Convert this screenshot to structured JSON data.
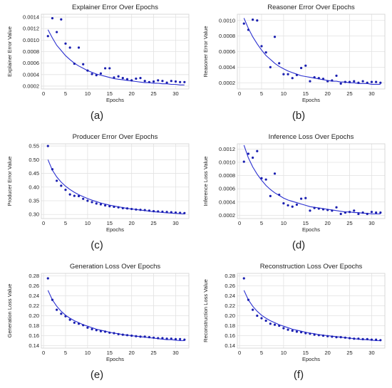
{
  "colors": {
    "fit": "#2a2fd0",
    "points": "#1a1fb0",
    "grid": "#e2e2e2",
    "text": "#222222"
  },
  "chart_data": [
    {
      "type": "scatter",
      "title": "Explainer Error Over Epochs",
      "xlabel": "Epochs",
      "ylabel": "Explainer Error Value",
      "caption": "(a)",
      "xlim": [
        -0.5,
        33
      ],
      "ylim": [
        0.00015,
        0.00145
      ],
      "xticks": [
        0,
        5,
        10,
        15,
        20,
        25,
        30
      ],
      "yticks": [
        0.0002,
        0.0004,
        0.0006,
        0.0008,
        0.001,
        0.0012,
        0.0014
      ],
      "ytick_labels": [
        "0.0002",
        "0.0004",
        "0.0006",
        "0.0008",
        "0.0010",
        "0.0012",
        "0.0014"
      ],
      "grid": true,
      "series": [
        {
          "type": "scatter",
          "x": [
            1,
            2,
            3,
            4,
            5,
            6,
            7,
            8,
            9,
            10,
            11,
            12,
            13,
            14,
            15,
            16,
            17,
            18,
            19,
            20,
            21,
            22,
            23,
            24,
            25,
            26,
            27,
            28,
            29,
            30,
            31,
            32
          ],
          "y": [
            0.00107,
            0.00138,
            0.00114,
            0.00136,
            0.00094,
            0.00087,
            0.00059,
            0.00087,
            0.00058,
            0.00047,
            0.00041,
            0.00039,
            0.00042,
            0.00051,
            0.00051,
            0.00035,
            0.00037,
            0.00034,
            0.00032,
            0.0003,
            0.00033,
            0.00034,
            0.00029,
            0.00027,
            0.00028,
            0.0003,
            0.00029,
            0.00026,
            0.00029,
            0.00028,
            0.00027,
            0.00027
          ]
        },
        {
          "type": "line",
          "x": [
            1,
            2,
            3,
            4,
            5,
            6,
            7,
            8,
            9,
            10,
            11,
            12,
            13,
            14,
            15,
            16,
            17,
            18,
            19,
            20,
            21,
            22,
            23,
            24,
            25,
            26,
            27,
            28,
            29,
            30,
            31,
            32
          ],
          "y": [
            0.00118,
            0.00104,
            0.00091,
            0.00082,
            0.00073,
            0.00066,
            0.0006,
            0.00055,
            0.00051,
            0.00047,
            0.00044,
            0.00041,
            0.00039,
            0.00037,
            0.00035,
            0.00033,
            0.00032,
            0.00031,
            0.0003,
            0.00029,
            0.00028,
            0.00027,
            0.00026,
            0.00026,
            0.00025,
            0.00025,
            0.00024,
            0.00024,
            0.00023,
            0.00023,
            0.00022,
            0.00022
          ]
        }
      ]
    },
    {
      "type": "scatter",
      "title": "Reasoner Error Over Epochs",
      "xlabel": "Epochs",
      "ylabel": "Reasoner Error Value",
      "caption": "(b)",
      "xlim": [
        -0.5,
        33
      ],
      "ylim": [
        0.00012,
        0.00108
      ],
      "xticks": [
        0,
        5,
        10,
        15,
        20,
        25,
        30
      ],
      "yticks": [
        0.0002,
        0.0004,
        0.0006,
        0.0008,
        0.001
      ],
      "ytick_labels": [
        "0.0002",
        "0.0004",
        "0.0006",
        "0.0008",
        "0.0010"
      ],
      "grid": true,
      "series": [
        {
          "type": "scatter",
          "x": [
            1,
            2,
            3,
            4,
            5,
            6,
            7,
            8,
            9,
            10,
            11,
            12,
            13,
            14,
            15,
            16,
            17,
            18,
            19,
            20,
            21,
            22,
            23,
            24,
            25,
            26,
            27,
            28,
            29,
            30,
            31,
            32
          ],
          "y": [
            0.00096,
            0.00088,
            0.00101,
            0.001,
            0.00067,
            0.00059,
            0.0004,
            0.00079,
            0.00045,
            0.00031,
            0.00031,
            0.00026,
            0.0003,
            0.00039,
            0.00042,
            0.00022,
            0.00027,
            0.00026,
            0.00025,
            0.00022,
            0.00023,
            0.00029,
            0.00019,
            0.00021,
            0.00021,
            0.00022,
            0.0002,
            0.00022,
            0.0002,
            0.00021,
            0.00021,
            0.0002
          ]
        },
        {
          "type": "line",
          "x": [
            1,
            2,
            3,
            4,
            5,
            6,
            7,
            8,
            9,
            10,
            11,
            12,
            13,
            14,
            15,
            16,
            17,
            18,
            19,
            20,
            21,
            22,
            23,
            24,
            25,
            26,
            27,
            28,
            29,
            30,
            31,
            32
          ],
          "y": [
            0.00103,
            0.0009,
            0.00079,
            0.0007,
            0.00062,
            0.00055,
            0.0005,
            0.00045,
            0.00041,
            0.00038,
            0.00035,
            0.00033,
            0.00031,
            0.00029,
            0.00028,
            0.00027,
            0.00026,
            0.00025,
            0.00024,
            0.00023,
            0.00022,
            0.00022,
            0.00021,
            0.00021,
            0.0002,
            0.0002,
            0.00019,
            0.00019,
            0.00019,
            0.00018,
            0.00018,
            0.00018
          ]
        }
      ]
    },
    {
      "type": "scatter",
      "title": "Producer Error Over Epochs",
      "xlabel": "Epochs",
      "ylabel": "Producer Error Value",
      "caption": "(c)",
      "xlim": [
        -0.5,
        33
      ],
      "ylim": [
        0.285,
        0.558
      ],
      "xticks": [
        0,
        5,
        10,
        15,
        20,
        25,
        30
      ],
      "yticks": [
        0.3,
        0.35,
        0.4,
        0.45,
        0.5,
        0.55
      ],
      "ytick_labels": [
        "0.30",
        "0.35",
        "0.40",
        "0.45",
        "0.50",
        "0.55"
      ],
      "grid": true,
      "series": [
        {
          "type": "scatter",
          "x": [
            1,
            2,
            3,
            4,
            5,
            6,
            7,
            8,
            9,
            10,
            11,
            12,
            13,
            14,
            15,
            16,
            17,
            18,
            19,
            20,
            21,
            22,
            23,
            24,
            25,
            26,
            27,
            28,
            29,
            30,
            31,
            32
          ],
          "y": [
            0.55,
            0.465,
            0.423,
            0.405,
            0.39,
            0.373,
            0.368,
            0.367,
            0.357,
            0.35,
            0.345,
            0.34,
            0.337,
            0.333,
            0.33,
            0.328,
            0.326,
            0.323,
            0.322,
            0.32,
            0.318,
            0.317,
            0.316,
            0.314,
            0.312,
            0.311,
            0.31,
            0.309,
            0.308,
            0.307,
            0.306,
            0.305
          ]
        },
        {
          "type": "line",
          "x": [
            1,
            2,
            3,
            4,
            5,
            6,
            7,
            8,
            9,
            10,
            11,
            12,
            13,
            14,
            15,
            16,
            17,
            18,
            19,
            20,
            21,
            22,
            23,
            24,
            25,
            26,
            27,
            28,
            29,
            30,
            31,
            32
          ],
          "y": [
            0.5,
            0.462,
            0.437,
            0.418,
            0.403,
            0.391,
            0.381,
            0.372,
            0.365,
            0.358,
            0.352,
            0.347,
            0.342,
            0.338,
            0.334,
            0.331,
            0.328,
            0.325,
            0.322,
            0.32,
            0.318,
            0.316,
            0.314,
            0.312,
            0.31,
            0.309,
            0.307,
            0.306,
            0.305,
            0.304,
            0.303,
            0.302
          ]
        }
      ]
    },
    {
      "type": "scatter",
      "title": "Inference Loss Over Epochs",
      "xlabel": "Epochs",
      "ylabel": "Inference Loss Value",
      "caption": "(d)",
      "xlim": [
        -0.5,
        33
      ],
      "ylim": [
        0.00015,
        0.00128
      ],
      "xticks": [
        0,
        5,
        10,
        15,
        20,
        25,
        30
      ],
      "yticks": [
        0.0002,
        0.0004,
        0.0006,
        0.0008,
        0.001,
        0.0012
      ],
      "ytick_labels": [
        "0.0002",
        "0.0004",
        "0.0006",
        "0.0008",
        "0.0010",
        "0.0012"
      ],
      "grid": true,
      "series": [
        {
          "type": "scatter",
          "x": [
            1,
            2,
            3,
            4,
            5,
            6,
            7,
            8,
            9,
            10,
            11,
            12,
            13,
            14,
            15,
            16,
            17,
            18,
            19,
            20,
            21,
            22,
            23,
            24,
            25,
            26,
            27,
            28,
            29,
            30,
            31,
            32
          ],
          "y": [
            0.00101,
            0.00113,
            0.00107,
            0.00117,
            0.00076,
            0.00074,
            0.00049,
            0.00083,
            0.00051,
            0.00038,
            0.00035,
            0.00033,
            0.00036,
            0.00045,
            0.00046,
            0.00027,
            0.00031,
            0.0003,
            0.00029,
            0.00028,
            0.00027,
            0.00032,
            0.00022,
            0.00024,
            0.00025,
            0.00027,
            0.00022,
            0.00024,
            0.00022,
            0.00025,
            0.00024,
            0.00024
          ]
        },
        {
          "type": "line",
          "x": [
            1,
            2,
            3,
            4,
            5,
            6,
            7,
            8,
            9,
            10,
            11,
            12,
            13,
            14,
            15,
            16,
            17,
            18,
            19,
            20,
            21,
            22,
            23,
            24,
            25,
            26,
            27,
            28,
            29,
            30,
            31,
            32
          ],
          "y": [
            0.00126,
            0.00107,
            0.00093,
            0.00082,
            0.00073,
            0.00065,
            0.00059,
            0.00054,
            0.0005,
            0.00046,
            0.00043,
            0.00041,
            0.00039,
            0.00037,
            0.00035,
            0.00033,
            0.00032,
            0.00031,
            0.0003,
            0.00029,
            0.00028,
            0.00027,
            0.00026,
            0.00025,
            0.00025,
            0.00024,
            0.00024,
            0.00023,
            0.00023,
            0.00022,
            0.00022,
            0.00022
          ]
        }
      ]
    },
    {
      "type": "scatter",
      "title": "Generation Loss Over Epochs",
      "xlabel": "Epochs",
      "ylabel": "Generation Loss Value",
      "caption": "(e)",
      "xlim": [
        -0.5,
        33
      ],
      "ylim": [
        0.135,
        0.285
      ],
      "xticks": [
        0,
        5,
        10,
        15,
        20,
        25,
        30
      ],
      "yticks": [
        0.14,
        0.16,
        0.18,
        0.2,
        0.22,
        0.24,
        0.26,
        0.28
      ],
      "ytick_labels": [
        "0.14",
        "0.16",
        "0.18",
        "0.20",
        "0.22",
        "0.24",
        "0.26",
        "0.28"
      ],
      "grid": true,
      "series": [
        {
          "type": "scatter",
          "x": [
            1,
            2,
            3,
            4,
            5,
            6,
            7,
            8,
            9,
            10,
            11,
            12,
            13,
            14,
            15,
            16,
            17,
            18,
            19,
            20,
            21,
            22,
            23,
            24,
            25,
            26,
            27,
            28,
            29,
            30,
            31,
            32
          ],
          "y": [
            0.275,
            0.232,
            0.212,
            0.204,
            0.199,
            0.192,
            0.186,
            0.184,
            0.181,
            0.176,
            0.173,
            0.171,
            0.169,
            0.168,
            0.166,
            0.165,
            0.163,
            0.162,
            0.161,
            0.16,
            0.159,
            0.158,
            0.158,
            0.157,
            0.156,
            0.155,
            0.155,
            0.154,
            0.154,
            0.153,
            0.153,
            0.152
          ]
        },
        {
          "type": "line",
          "x": [
            1,
            2,
            3,
            4,
            5,
            6,
            7,
            8,
            9,
            10,
            11,
            12,
            13,
            14,
            15,
            16,
            17,
            18,
            19,
            20,
            21,
            22,
            23,
            24,
            25,
            26,
            27,
            28,
            29,
            30,
            31,
            32
          ],
          "y": [
            0.251,
            0.232,
            0.219,
            0.209,
            0.201,
            0.195,
            0.19,
            0.186,
            0.182,
            0.179,
            0.176,
            0.173,
            0.171,
            0.169,
            0.167,
            0.165,
            0.164,
            0.162,
            0.161,
            0.16,
            0.159,
            0.158,
            0.157,
            0.156,
            0.155,
            0.154,
            0.153,
            0.152,
            0.152,
            0.151,
            0.15,
            0.15
          ]
        }
      ]
    },
    {
      "type": "scatter",
      "title": "Reconstruction Loss Over Epochs",
      "xlabel": "Epochs",
      "ylabel": "Reconstruction Loss Value",
      "caption": "(f)",
      "xlim": [
        -0.5,
        33
      ],
      "ylim": [
        0.135,
        0.285
      ],
      "xticks": [
        0,
        5,
        10,
        15,
        20,
        25,
        30
      ],
      "yticks": [
        0.14,
        0.16,
        0.18,
        0.2,
        0.22,
        0.24,
        0.26,
        0.28
      ],
      "ytick_labels": [
        "0.14",
        "0.16",
        "0.18",
        "0.20",
        "0.22",
        "0.24",
        "0.26",
        "0.28"
      ],
      "grid": true,
      "series": [
        {
          "type": "scatter",
          "x": [
            1,
            2,
            3,
            4,
            5,
            6,
            7,
            8,
            9,
            10,
            11,
            12,
            13,
            14,
            15,
            16,
            17,
            18,
            19,
            20,
            21,
            22,
            23,
            24,
            25,
            26,
            27,
            28,
            29,
            30,
            31,
            32
          ],
          "y": [
            0.275,
            0.232,
            0.212,
            0.2,
            0.195,
            0.19,
            0.184,
            0.182,
            0.18,
            0.175,
            0.172,
            0.17,
            0.168,
            0.167,
            0.165,
            0.164,
            0.162,
            0.161,
            0.16,
            0.159,
            0.158,
            0.157,
            0.157,
            0.156,
            0.155,
            0.154,
            0.154,
            0.153,
            0.153,
            0.152,
            0.152,
            0.151
          ]
        },
        {
          "type": "line",
          "x": [
            1,
            2,
            3,
            4,
            5,
            6,
            7,
            8,
            9,
            10,
            11,
            12,
            13,
            14,
            15,
            16,
            17,
            18,
            19,
            20,
            21,
            22,
            23,
            24,
            25,
            26,
            27,
            28,
            29,
            30,
            31,
            32
          ],
          "y": [
            0.251,
            0.232,
            0.219,
            0.209,
            0.201,
            0.195,
            0.19,
            0.186,
            0.182,
            0.179,
            0.176,
            0.173,
            0.171,
            0.169,
            0.167,
            0.165,
            0.164,
            0.162,
            0.161,
            0.16,
            0.159,
            0.158,
            0.157,
            0.156,
            0.155,
            0.154,
            0.153,
            0.152,
            0.152,
            0.151,
            0.15,
            0.15
          ]
        }
      ]
    }
  ]
}
